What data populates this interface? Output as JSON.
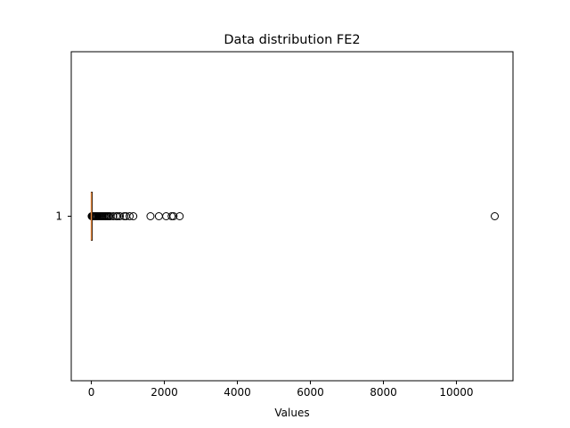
{
  "chart_data": {
    "type": "boxplot",
    "orientation": "horizontal",
    "title": "Data distribution FE2",
    "xlabel": "Values",
    "ylabel": "",
    "xlim": [
      -550,
      11550
    ],
    "x_ticks": [
      0,
      2000,
      4000,
      6000,
      8000,
      10000
    ],
    "x_tick_labels": [
      "0",
      "2000",
      "4000",
      "6000",
      "8000",
      "10000"
    ],
    "y_tick_labels": [
      "1"
    ],
    "grid": false,
    "boxes": [
      {
        "position": 1,
        "label": "1",
        "whisker_low": 0,
        "q1": 0,
        "median": 0,
        "q3": 2,
        "whisker_high": 5,
        "outliers": [
          10,
          15,
          20,
          30,
          40,
          55,
          70,
          90,
          110,
          130,
          150,
          180,
          210,
          240,
          270,
          300,
          330,
          360,
          390,
          420,
          450,
          480,
          520,
          600,
          680,
          720,
          780,
          900,
          950,
          1050,
          1150,
          1620,
          1850,
          2050,
          2200,
          2250,
          2420,
          11050
        ]
      }
    ],
    "colors": {
      "median": "#e5883e",
      "box": "#000000",
      "outlier_edge": "#000000"
    }
  }
}
